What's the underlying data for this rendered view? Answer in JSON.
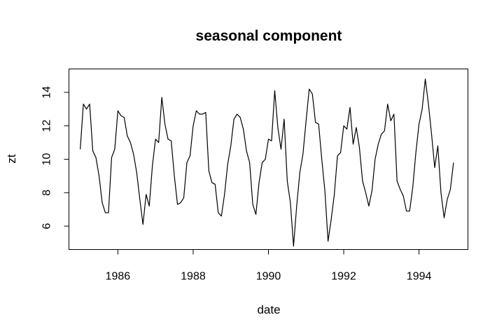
{
  "chart_data": {
    "type": "line",
    "title": "seasonal component",
    "xlabel": "date",
    "ylabel": "zt",
    "xlim": [
      1984.7,
      1995.3
    ],
    "ylim": [
      4.6,
      15.4
    ],
    "x_ticks": [
      1986,
      1988,
      1990,
      1992,
      1994
    ],
    "x_tick_labels": [
      "1986",
      "1988",
      "1990",
      "1992",
      "1994"
    ],
    "y_ticks": [
      6,
      8,
      10,
      12,
      14
    ],
    "y_tick_labels": [
      "6",
      "8",
      "10",
      "12",
      "14"
    ],
    "grid": false,
    "legend": "none",
    "x_start": 1985.0,
    "x_step": 0.0833333,
    "series": [
      {
        "values": [
          10.6,
          13.3,
          13.0,
          13.3,
          10.5,
          10.1,
          9.0,
          7.4,
          6.8,
          6.8,
          10.1,
          10.6,
          12.9,
          12.6,
          12.5,
          11.4,
          11.0,
          10.3,
          9.2,
          7.6,
          6.1,
          7.9,
          7.2,
          9.6,
          11.2,
          11.0,
          13.7,
          12.1,
          11.2,
          11.1,
          9.0,
          7.3,
          7.4,
          7.7,
          9.8,
          10.2,
          12.0,
          12.9,
          12.7,
          12.7,
          12.8,
          9.3,
          8.6,
          8.5,
          6.8,
          6.6,
          7.9,
          9.7,
          10.8,
          12.4,
          12.7,
          12.5,
          11.8,
          10.5,
          9.8,
          7.3,
          6.7,
          8.6,
          9.8,
          10.0,
          11.2,
          11.1,
          14.1,
          11.9,
          10.6,
          12.4,
          8.7,
          7.4,
          4.8,
          7.2,
          9.2,
          10.3,
          12.3,
          14.2,
          13.9,
          12.2,
          12.1,
          10.0,
          8.1,
          5.1,
          6.4,
          7.9,
          10.2,
          10.4,
          12.0,
          11.8,
          13.1,
          10.9,
          11.9,
          10.7,
          8.7,
          8.0,
          7.2,
          8.1,
          10.0,
          10.9,
          11.5,
          11.7,
          13.3,
          12.3,
          12.7,
          8.7,
          8.2,
          7.8,
          6.9,
          6.9,
          8.3,
          10.4,
          12.1,
          13.0,
          14.8,
          13.3,
          11.5,
          9.5,
          10.8,
          8.0,
          6.5,
          7.6,
          8.2,
          9.8
        ]
      }
    ]
  }
}
